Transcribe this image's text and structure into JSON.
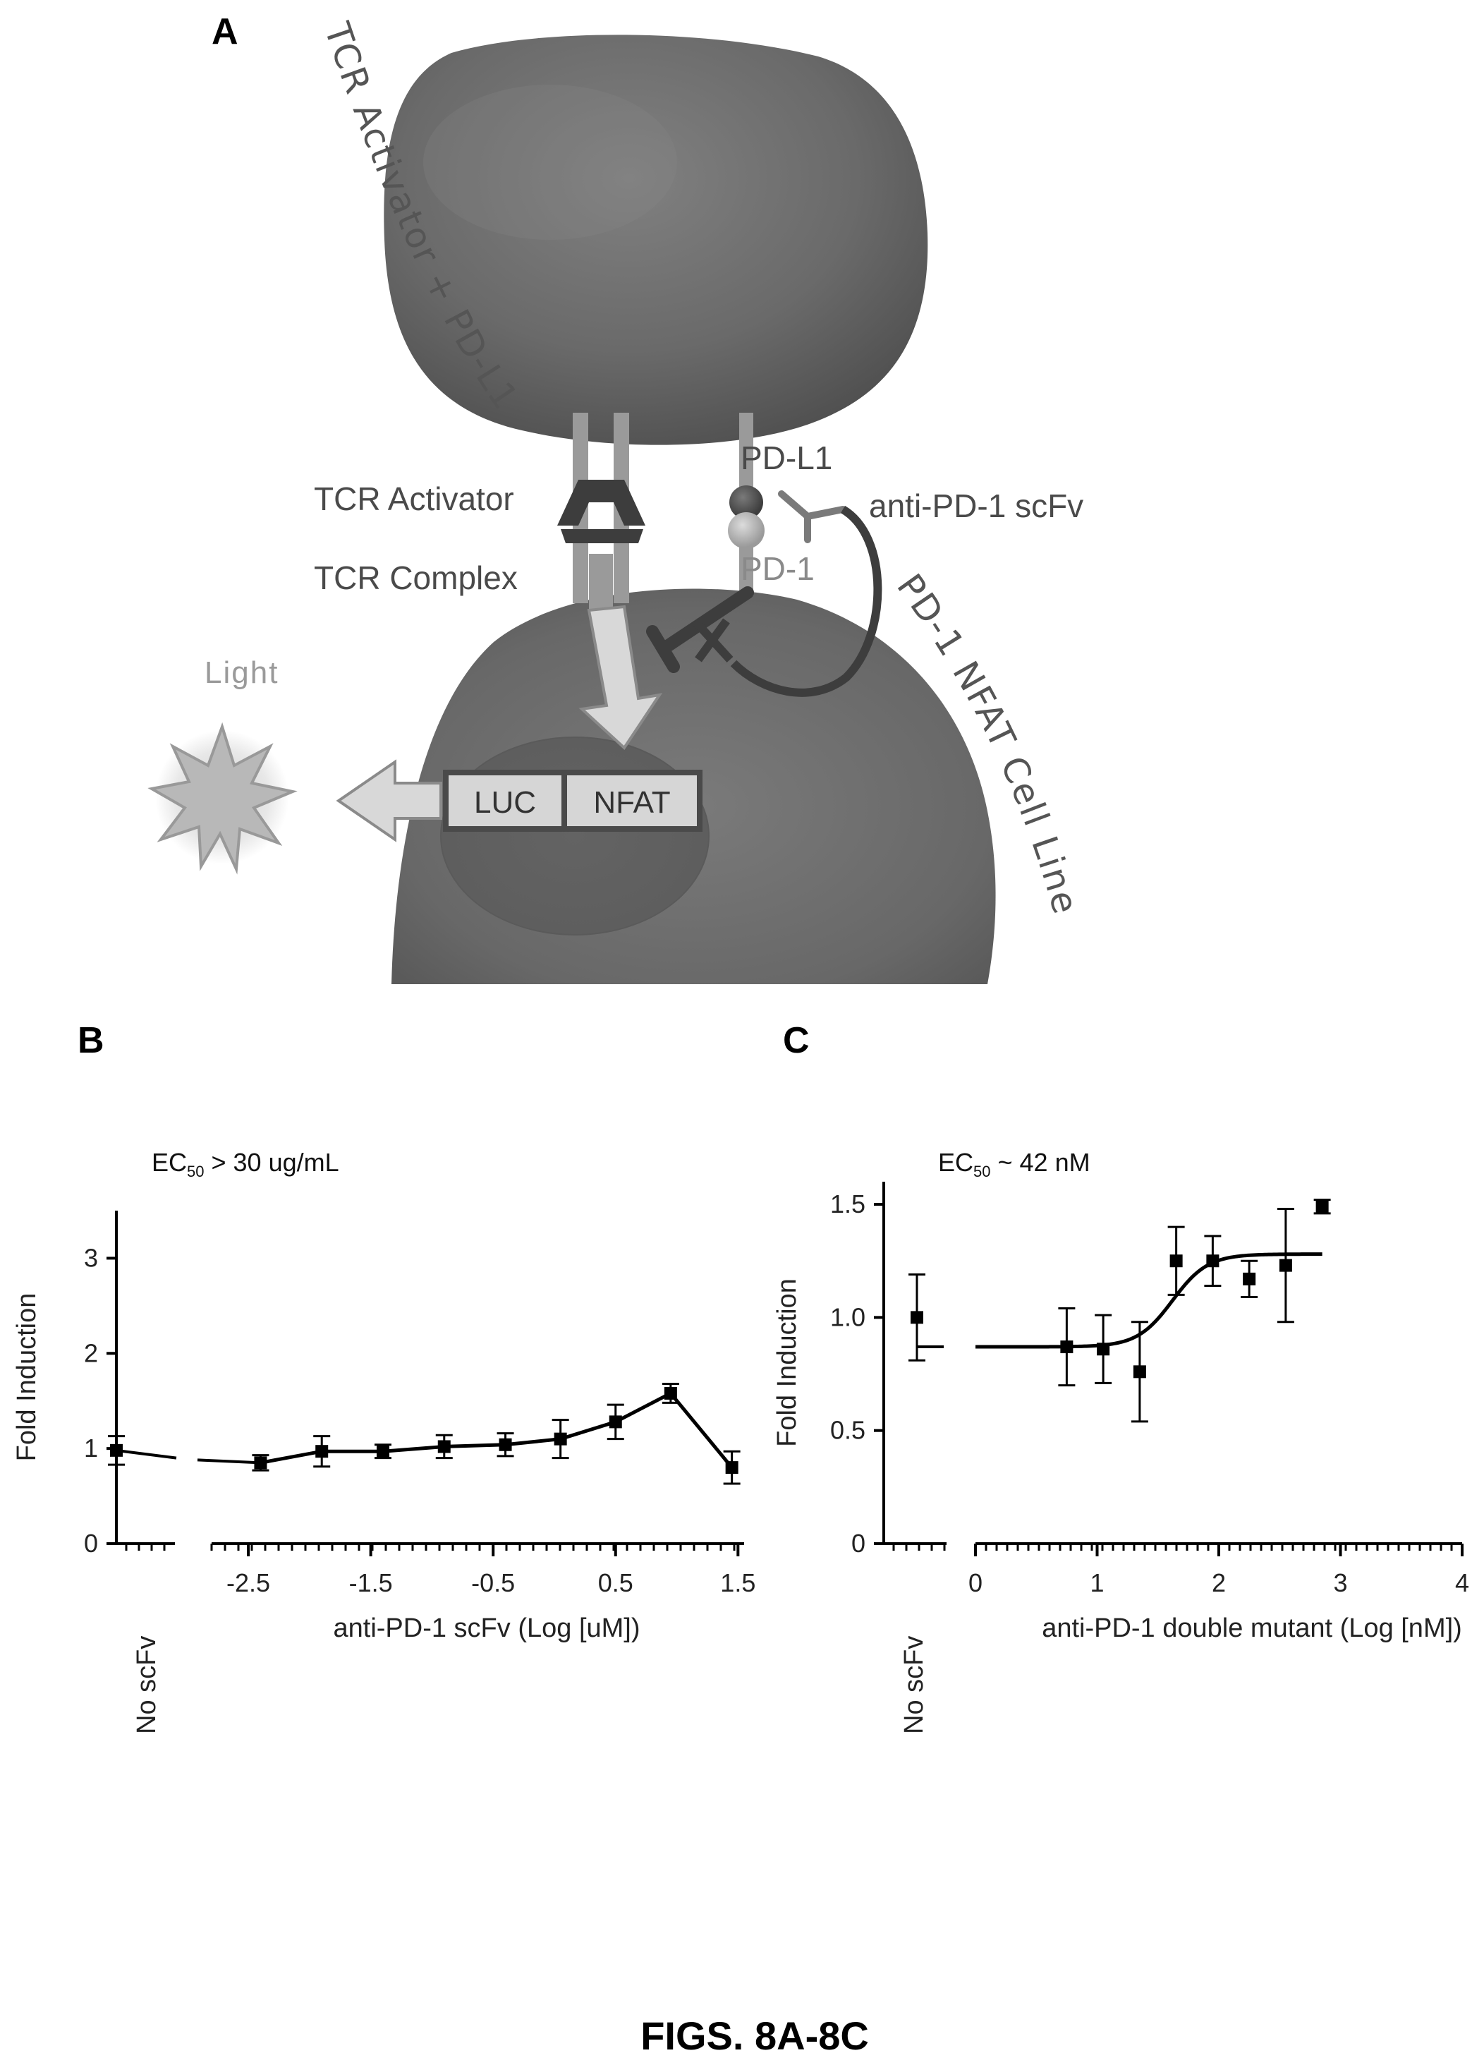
{
  "panel_a": {
    "letter": "A",
    "top_cell_label": "TCR Activator + PD-L1",
    "bottom_cell_label": "PD-1 NFAT Cell Line",
    "labels": {
      "pdl1": "PD-L1",
      "tcr_activator": "TCR Activator",
      "anti_pd1_scfv": "anti-PD-1 scFv",
      "tcr_complex": "TCR Complex",
      "pd1": "PD-1",
      "light": "Light",
      "luc": "LUC",
      "nfat": "NFAT"
    },
    "colors": {
      "cell": "#6b6b6b",
      "receptor": "#9a9a9a",
      "dark": "#3d3d3d",
      "light_star": "#b0b0b0",
      "box_fill": "#d6d6d6"
    }
  },
  "chart_data": [
    {
      "panel": "B",
      "type": "line",
      "annotation_main": "EC",
      "annotation_sub": "50",
      "annotation_rest": " > 30 ug/mL",
      "ylabel": "Fold Induction",
      "xlabel": "anti-PD-1 scFv (Log [uM])",
      "control_label": "No scFv",
      "ylim": [
        0,
        3.5
      ],
      "yticks": [
        "0",
        "1",
        "2",
        "3"
      ],
      "ytick_values": [
        0,
        1,
        2,
        3
      ],
      "xlim": [
        -2.8,
        1.55
      ],
      "xticks": [
        "-2.5",
        "-1.5",
        "-0.5",
        "0.5",
        "1.5"
      ],
      "xtick_values": [
        -2.5,
        -1.5,
        -0.5,
        0.5,
        1.5
      ],
      "control": {
        "y": 0.98,
        "err": 0.15
      },
      "x": [
        -2.4,
        -1.9,
        -1.4,
        -0.9,
        -0.4,
        0.05,
        0.5,
        0.95,
        1.45
      ],
      "y": [
        0.85,
        0.97,
        0.97,
        1.02,
        1.04,
        1.1,
        1.28,
        1.58,
        0.8
      ],
      "err": [
        0.08,
        0.16,
        0.07,
        0.12,
        0.12,
        0.2,
        0.18,
        0.1,
        0.17
      ]
    },
    {
      "panel": "C",
      "type": "scatter",
      "annotation_main": "EC",
      "annotation_sub": "50",
      "annotation_rest": " ~ 42 nM",
      "ylabel": "Fold Induction",
      "xlabel": "anti-PD-1 double mutant (Log [nM])",
      "control_label": "No scFv",
      "ylim": [
        0,
        1.6
      ],
      "yticks": [
        "0",
        "0.5",
        "1.0",
        "1.5"
      ],
      "ytick_values": [
        0,
        0.5,
        1.0,
        1.5
      ],
      "xlim": [
        0,
        4
      ],
      "xticks": [
        "0",
        "1",
        "2",
        "3",
        "4"
      ],
      "xtick_values": [
        0,
        1,
        2,
        3,
        4
      ],
      "control": {
        "y": 1.0,
        "err": 0.19,
        "fit": 0.87
      },
      "x": [
        0.75,
        1.05,
        1.35,
        1.65,
        1.95,
        2.25,
        2.55,
        2.85
      ],
      "y": [
        0.87,
        0.86,
        0.76,
        1.25,
        1.25,
        1.17,
        1.23,
        1.49
      ],
      "err": [
        0.17,
        0.15,
        0.22,
        0.15,
        0.11,
        0.08,
        0.25,
        0.03
      ],
      "fit": {
        "bottom": 0.87,
        "top": 1.28,
        "log_ec50": 1.62,
        "hill": 12,
        "x_range": [
          0,
          2.85
        ]
      }
    }
  ],
  "caption": "FIGS. 8A-8C"
}
